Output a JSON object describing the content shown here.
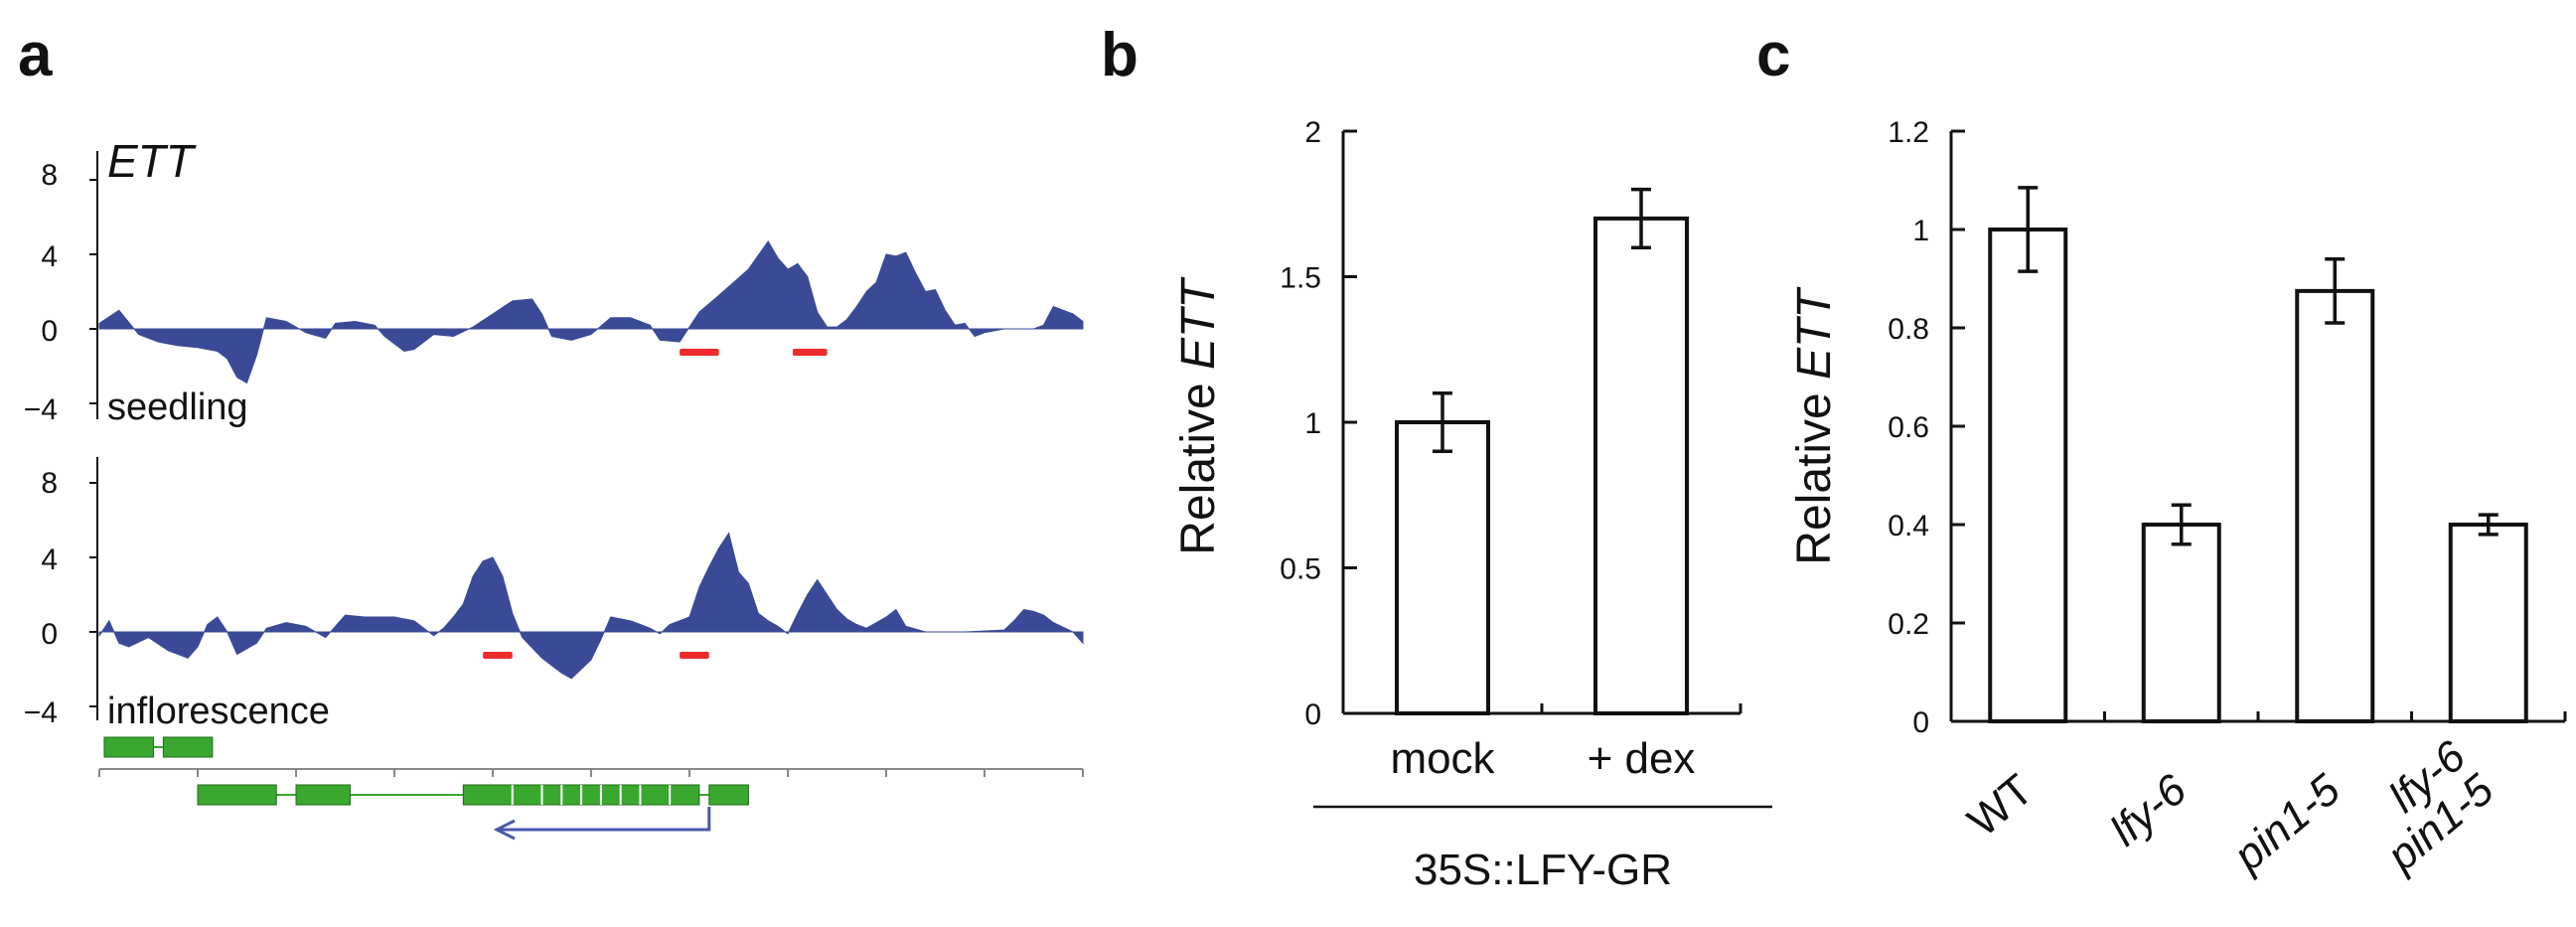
{
  "panels": {
    "a": {
      "letter": "a"
    },
    "b": {
      "letter": "b"
    },
    "c": {
      "letter": "c"
    }
  },
  "colors": {
    "signal": "#3a4a96",
    "peak": "#ee2b2b",
    "gene": "#3aa82f",
    "arrow": "#4b57a8",
    "axis": "#111111",
    "bar_fill": "#ffffff"
  },
  "chart_data": [
    {
      "panel": "a",
      "type": "area",
      "title": "ETT",
      "tracks": [
        {
          "name": "seedling",
          "yticks": [
            "8",
            "4",
            "0",
            "−4"
          ],
          "ylim": [
            -4,
            9.5
          ],
          "x_range": [
            0,
            100
          ],
          "profile": [
            [
              0,
              0.3
            ],
            [
              2,
              1.0
            ],
            [
              4,
              -0.3
            ],
            [
              6,
              -0.7
            ],
            [
              8,
              -0.9
            ],
            [
              10,
              -1.0
            ],
            [
              12,
              -1.2
            ],
            [
              13,
              -1.6
            ],
            [
              14,
              -2.6
            ],
            [
              15,
              -2.9
            ],
            [
              16,
              -1.4
            ],
            [
              17,
              0.6
            ],
            [
              19,
              0.4
            ],
            [
              21,
              -0.2
            ],
            [
              23,
              -0.5
            ],
            [
              24,
              0.3
            ],
            [
              26,
              0.4
            ],
            [
              28,
              0.2
            ],
            [
              29,
              -0.4
            ],
            [
              31,
              -1.2
            ],
            [
              32,
              -1.1
            ],
            [
              34,
              -0.3
            ],
            [
              36,
              -0.4
            ],
            [
              38,
              0.1
            ],
            [
              40,
              0.8
            ],
            [
              42,
              1.5
            ],
            [
              44,
              1.6
            ],
            [
              45,
              0.8
            ],
            [
              46,
              -0.4
            ],
            [
              48,
              -0.6
            ],
            [
              50,
              -0.3
            ],
            [
              52,
              0.6
            ],
            [
              54,
              0.6
            ],
            [
              56,
              0.2
            ],
            [
              57,
              -0.6
            ],
            [
              59,
              -0.7
            ],
            [
              60,
              0.1
            ],
            [
              61,
              0.9
            ],
            [
              63,
              1.8
            ],
            [
              66,
              3.2
            ],
            [
              68,
              4.7
            ],
            [
              69,
              3.8
            ],
            [
              70,
              3.2
            ],
            [
              71,
              3.5
            ],
            [
              72,
              2.8
            ],
            [
              73,
              0.9
            ],
            [
              74,
              0.1
            ],
            [
              75,
              0.1
            ],
            [
              76,
              0.5
            ],
            [
              77,
              1.2
            ],
            [
              78,
              2.0
            ],
            [
              79,
              2.5
            ],
            [
              80,
              4.0
            ],
            [
              81,
              3.9
            ],
            [
              82,
              4.1
            ],
            [
              83,
              3.0
            ],
            [
              84,
              2.0
            ],
            [
              85,
              2.1
            ],
            [
              86,
              1.0
            ],
            [
              87,
              0.2
            ],
            [
              88,
              0.3
            ],
            [
              89,
              -0.4
            ],
            [
              90,
              -0.2
            ],
            [
              92,
              0
            ],
            [
              94,
              0
            ],
            [
              95,
              0
            ],
            [
              96,
              0.2
            ],
            [
              97,
              1.2
            ],
            [
              98,
              1.0
            ],
            [
              99,
              0.8
            ],
            [
              100,
              0.4
            ]
          ],
          "peaks": [
            [
              59,
              63
            ],
            [
              70.5,
              74
            ]
          ]
        },
        {
          "name": "inflorescence",
          "yticks": [
            "8",
            "4",
            "0",
            "−4"
          ],
          "ylim": [
            -4,
            9.5
          ],
          "x_range": [
            0,
            100
          ],
          "profile": [
            [
              0,
              -0.2
            ],
            [
              1,
              0.6
            ],
            [
              2,
              -0.6
            ],
            [
              3,
              -0.8
            ],
            [
              5,
              -0.3
            ],
            [
              7,
              -1.0
            ],
            [
              9,
              -1.4
            ],
            [
              10,
              -0.8
            ],
            [
              11,
              0.4
            ],
            [
              12,
              0.8
            ],
            [
              13,
              0.0
            ],
            [
              14,
              -1.2
            ],
            [
              16,
              -0.6
            ],
            [
              17,
              0.2
            ],
            [
              19,
              0.5
            ],
            [
              21,
              0.3
            ],
            [
              23,
              -0.3
            ],
            [
              25,
              0.9
            ],
            [
              27,
              0.8
            ],
            [
              30,
              0.8
            ],
            [
              32,
              0.6
            ],
            [
              34,
              -0.2
            ],
            [
              35,
              0.2
            ],
            [
              36,
              0.8
            ],
            [
              37,
              1.5
            ],
            [
              38,
              3.0
            ],
            [
              39,
              3.8
            ],
            [
              40,
              4.0
            ],
            [
              41,
              3.0
            ],
            [
              42,
              1.0
            ],
            [
              43,
              -0.3
            ],
            [
              45,
              -1.4
            ],
            [
              47,
              -2.2
            ],
            [
              48,
              -2.5
            ],
            [
              50,
              -1.5
            ],
            [
              51,
              -0.4
            ],
            [
              52,
              0.8
            ],
            [
              54,
              0.6
            ],
            [
              55,
              0.4
            ],
            [
              56,
              0.2
            ],
            [
              57,
              -0.1
            ],
            [
              58,
              0.4
            ],
            [
              59,
              0.6
            ],
            [
              60,
              0.8
            ],
            [
              61,
              2.4
            ],
            [
              62,
              3.5
            ],
            [
              63,
              4.5
            ],
            [
              64,
              5.3
            ],
            [
              65,
              3.2
            ],
            [
              66,
              2.6
            ],
            [
              67,
              1.0
            ],
            [
              68,
              0.6
            ],
            [
              69,
              0.3
            ],
            [
              70,
              -0.1
            ],
            [
              71,
              1.0
            ],
            [
              72,
              2.0
            ],
            [
              73,
              2.8
            ],
            [
              74,
              2.0
            ],
            [
              75,
              1.2
            ],
            [
              76,
              0.7
            ],
            [
              77,
              0.4
            ],
            [
              78,
              0.2
            ],
            [
              80,
              0.8
            ],
            [
              81,
              1.2
            ],
            [
              82,
              0.3
            ],
            [
              84,
              0
            ],
            [
              88,
              0
            ],
            [
              92,
              0.1
            ],
            [
              93,
              0.6
            ],
            [
              94,
              1.2
            ],
            [
              95,
              1.1
            ],
            [
              96,
              0.9
            ],
            [
              97,
              0.5
            ],
            [
              99,
              0.0
            ],
            [
              100,
              -0.6
            ]
          ],
          "peaks": [
            [
              39,
              42
            ],
            [
              59,
              62
            ]
          ]
        }
      ],
      "gene_model": {
        "top_row": [
          [
            0.5,
            5.5
          ],
          [
            6.5,
            11.5
          ]
        ],
        "bottom_row": [
          [
            10,
            18
          ],
          [
            20,
            25.5
          ],
          [
            37,
            61
          ],
          [
            62,
            66
          ]
        ],
        "arrow_span": [
          62,
          40
        ]
      }
    },
    {
      "panel": "b",
      "type": "bar",
      "categories": [
        "mock",
        "+ dex"
      ],
      "values": [
        1.0,
        1.7
      ],
      "errors": [
        0.1,
        0.1
      ],
      "ylabel_prefix": "Relative ",
      "ylabel_gene": "ETT",
      "yticks": [
        "0",
        "0.5",
        "1",
        "1.5",
        "2"
      ],
      "ylim": [
        0,
        2
      ],
      "group_label": "35S::LFY-GR"
    },
    {
      "panel": "c",
      "type": "bar",
      "categories": [
        "WT",
        "lfy-6",
        "pin1-5",
        "lfy-6\npin1-5"
      ],
      "category_lines": [
        [
          "WT"
        ],
        [
          "lfy-6"
        ],
        [
          "pin1-5"
        ],
        [
          "lfy-6",
          "pin1-5"
        ]
      ],
      "category_italic": [
        false,
        true,
        true,
        true
      ],
      "values": [
        1.0,
        0.4,
        0.875,
        0.4
      ],
      "errors": [
        0.085,
        0.04,
        0.065,
        0.02
      ],
      "ylabel_prefix": "Relative ",
      "ylabel_gene": "ETT",
      "yticks": [
        "0",
        "0.2",
        "0.4",
        "0.6",
        "0.8",
        "1",
        "1.2"
      ],
      "ylim": [
        0,
        1.2
      ]
    }
  ]
}
